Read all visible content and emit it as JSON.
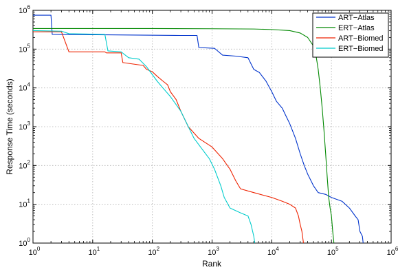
{
  "chart_data": {
    "type": "line",
    "xlabel": "Rank",
    "ylabel": "Response Time (seconds)",
    "xscale": "log",
    "yscale": "log",
    "xlim": [
      1,
      1000000
    ],
    "ylim": [
      1,
      1000000
    ],
    "grid": true,
    "legend_position": "top-right",
    "x_ticks": [
      "10^0",
      "10^1",
      "10^2",
      "10^3",
      "10^4",
      "10^5",
      "10^6"
    ],
    "y_ticks": [
      "10^0",
      "10^1",
      "10^2",
      "10^3",
      "10^4",
      "10^5",
      "10^6"
    ],
    "series": [
      {
        "name": "ART−Atlas",
        "color": "#0033cc",
        "points": [
          [
            1,
            750000
          ],
          [
            2,
            750000
          ],
          [
            2.1,
            240000
          ],
          [
            300,
            225000
          ],
          [
            560,
            225000
          ],
          [
            600,
            110000
          ],
          [
            1100,
            105000
          ],
          [
            1500,
            70000
          ],
          [
            2500,
            66000
          ],
          [
            4000,
            60000
          ],
          [
            5000,
            30000
          ],
          [
            6200,
            25000
          ],
          [
            8000,
            15000
          ],
          [
            10000,
            8000
          ],
          [
            12000,
            4500
          ],
          [
            15000,
            3000
          ],
          [
            17000,
            2000
          ],
          [
            20000,
            1200
          ],
          [
            25000,
            500
          ],
          [
            30000,
            200
          ],
          [
            35000,
            100
          ],
          [
            40000,
            60
          ],
          [
            50000,
            30
          ],
          [
            60000,
            20
          ],
          [
            80000,
            18
          ],
          [
            100000,
            15
          ],
          [
            150000,
            12
          ],
          [
            200000,
            8
          ],
          [
            250000,
            5
          ],
          [
            280000,
            4
          ],
          [
            300000,
            2
          ],
          [
            330000,
            1.5
          ],
          [
            340000,
            1
          ]
        ]
      },
      {
        "name": "ERT−Atlas",
        "color": "#008800",
        "points": [
          [
            1,
            340000
          ],
          [
            100,
            340000
          ],
          [
            1000,
            335000
          ],
          [
            5000,
            330000
          ],
          [
            10000,
            320000
          ],
          [
            20000,
            300000
          ],
          [
            30000,
            260000
          ],
          [
            40000,
            200000
          ],
          [
            50000,
            120000
          ],
          [
            55000,
            70000
          ],
          [
            60000,
            30000
          ],
          [
            65000,
            10000
          ],
          [
            70000,
            3000
          ],
          [
            75000,
            800
          ],
          [
            80000,
            200
          ],
          [
            85000,
            50
          ],
          [
            90000,
            15
          ],
          [
            95000,
            8
          ],
          [
            100000,
            5
          ],
          [
            105000,
            2
          ],
          [
            110000,
            1
          ]
        ]
      },
      {
        "name": "ART−Biomed",
        "color": "#ee2200",
        "points": [
          [
            1,
            280000
          ],
          [
            3,
            280000
          ],
          [
            4,
            85000
          ],
          [
            16,
            85000
          ],
          [
            17,
            80000
          ],
          [
            30,
            80000
          ],
          [
            32,
            45000
          ],
          [
            55,
            40000
          ],
          [
            70,
            38000
          ],
          [
            80,
            30000
          ],
          [
            100,
            26000
          ],
          [
            120,
            20000
          ],
          [
            150,
            15000
          ],
          [
            180,
            12000
          ],
          [
            200,
            8000
          ],
          [
            250,
            5000
          ],
          [
            300,
            2500
          ],
          [
            400,
            1000
          ],
          [
            600,
            500
          ],
          [
            1000,
            300
          ],
          [
            1500,
            150
          ],
          [
            2000,
            80
          ],
          [
            2500,
            40
          ],
          [
            3000,
            25
          ],
          [
            5000,
            20
          ],
          [
            10000,
            15
          ],
          [
            15000,
            12
          ],
          [
            20000,
            10
          ],
          [
            25000,
            8
          ],
          [
            28000,
            5
          ],
          [
            30000,
            3
          ],
          [
            32000,
            2
          ],
          [
            34000,
            1
          ]
        ]
      },
      {
        "name": "ERT−Biomed",
        "color": "#00cccc",
        "points": [
          [
            1,
            300000
          ],
          [
            3,
            290000
          ],
          [
            4,
            250000
          ],
          [
            15,
            240000
          ],
          [
            16,
            240000
          ],
          [
            18,
            90000
          ],
          [
            30,
            85000
          ],
          [
            40,
            60000
          ],
          [
            60,
            55000
          ],
          [
            80,
            35000
          ],
          [
            100,
            22000
          ],
          [
            120,
            15000
          ],
          [
            150,
            10000
          ],
          [
            200,
            6000
          ],
          [
            300,
            2500
          ],
          [
            400,
            1000
          ],
          [
            500,
            500
          ],
          [
            700,
            250
          ],
          [
            900,
            150
          ],
          [
            1100,
            80
          ],
          [
            1400,
            30
          ],
          [
            1600,
            15
          ],
          [
            2000,
            8
          ],
          [
            3000,
            6
          ],
          [
            4000,
            5
          ],
          [
            4500,
            3
          ],
          [
            5000,
            1.5
          ],
          [
            5200,
            1
          ]
        ]
      }
    ]
  }
}
